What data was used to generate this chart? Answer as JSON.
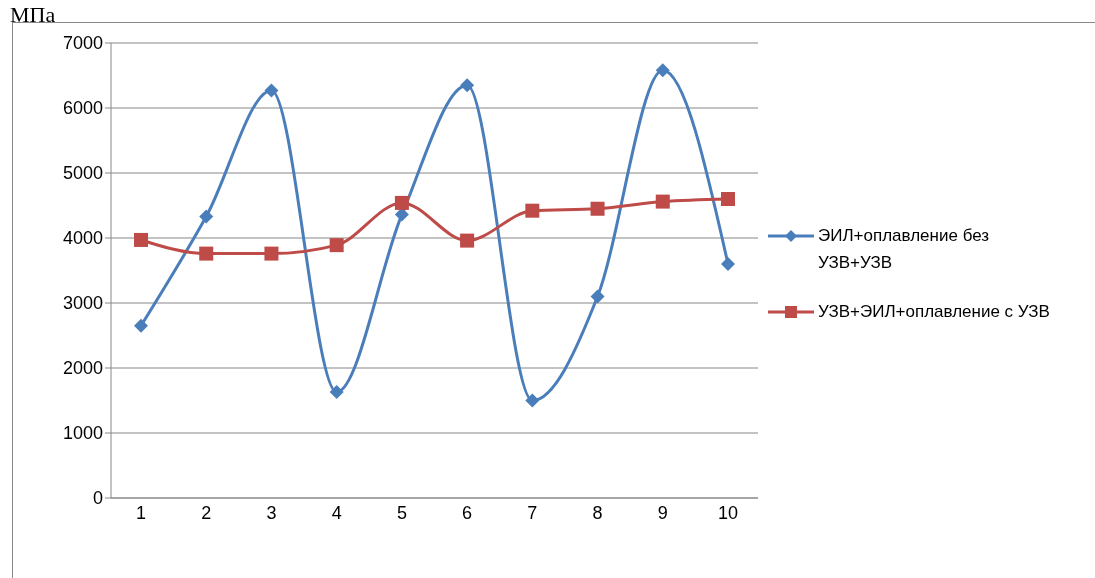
{
  "chart_data": {
    "type": "line",
    "ylabel": "МПа",
    "categories": [
      "1",
      "2",
      "3",
      "4",
      "5",
      "6",
      "7",
      "8",
      "9",
      "10"
    ],
    "series": [
      {
        "name": "ЭИЛ+оплавление без УЗВ+УЗВ",
        "color": "#4a7ebb",
        "marker": "diamond",
        "values": [
          2650,
          4330,
          6270,
          1630,
          4360,
          6350,
          1500,
          3100,
          6580,
          3600
        ]
      },
      {
        "name": "УЗВ+ЭИЛ+оплавление с УЗВ",
        "color": "#be4b48",
        "marker": "square",
        "values": [
          3970,
          3760,
          3760,
          3890,
          4540,
          3960,
          4420,
          4450,
          4560,
          4600
        ]
      }
    ],
    "ylim": [
      0,
      7000
    ],
    "yticks": [
      0,
      1000,
      2000,
      3000,
      4000,
      5000,
      6000,
      7000
    ],
    "grid": "y",
    "legend": "right",
    "line_style": "solid"
  }
}
